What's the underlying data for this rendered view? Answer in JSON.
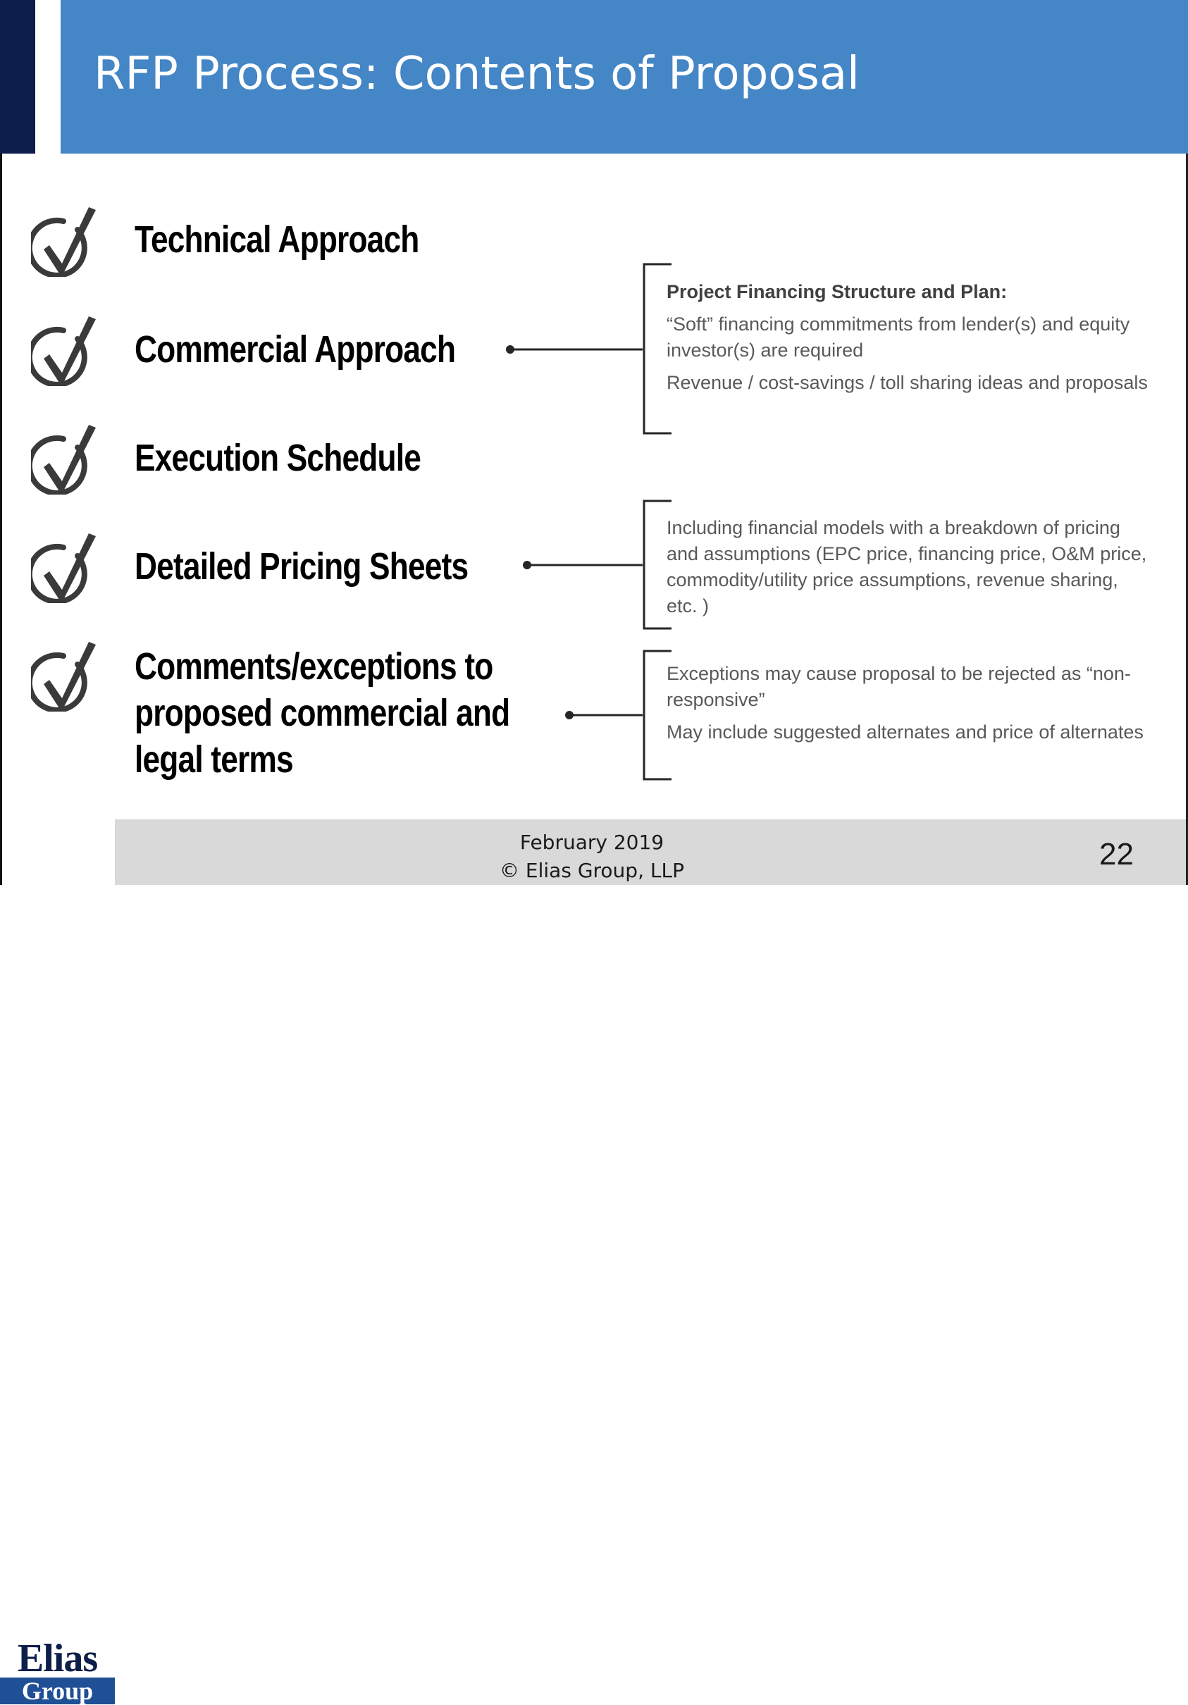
{
  "slide": {
    "title": "RFP Process: Contents of Proposal",
    "items": [
      {
        "label_lines": [
          "Technical Approach"
        ],
        "icon": "check-circle-icon"
      },
      {
        "label_lines": [
          "Commercial Approach"
        ],
        "icon": "check-circle-icon"
      },
      {
        "label_lines": [
          "Execution Schedule"
        ],
        "icon": "check-circle-icon"
      },
      {
        "label_lines": [
          "Detailed Pricing Sheets"
        ],
        "icon": "check-circle-icon"
      },
      {
        "label_lines": [
          "Comments/exceptions to",
          "proposed commercial and",
          "legal terms"
        ],
        "icon": "check-circle-icon"
      }
    ],
    "callouts": {
      "financing": {
        "heading": "Project Financing  Structure and Plan:",
        "p1": "“Soft” financing  commitments  from lender(s)  and equity  investor(s)  are required",
        "p2": "Revenue  / cost-savings  / toll sharing ideas and proposals"
      },
      "pricing": {
        "p1": "Including financial models  with a breakdown  of pricing and assumptions  (EPC price, financing price, O&M  price, commodity/utility  price assumptions,  revenue  sharing, etc. )"
      },
      "exceptions": {
        "p1": "Exceptions  may cause proposal  to be rejected  as “non-responsive”",
        "p2": "May include suggested  alternates  and price of alternates"
      }
    }
  },
  "footer": {
    "date": "February 2019",
    "copyright": "© Elias Group, LLP",
    "page_number": "22",
    "logo_top": "Elias",
    "logo_bottom": "Group"
  },
  "colors": {
    "title_band": "#4486c6",
    "navy": "#0d1e4a",
    "footer_bg": "#d9d9d9"
  }
}
